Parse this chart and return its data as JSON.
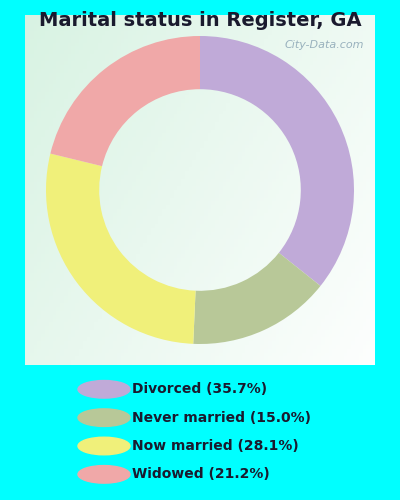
{
  "title": "Marital status in Register, GA",
  "title_fontsize": 14,
  "outer_bg_color": "#00ffff",
  "chart_bg_top_left": "#c8e8d8",
  "chart_bg_bottom_right": "#e8f4ee",
  "wedge_colors": [
    "#c0aad8",
    "#b8c898",
    "#f0f07a",
    "#f0a8a8"
  ],
  "values": [
    35.7,
    15.0,
    28.1,
    21.2
  ],
  "labels": [
    "Divorced (35.7%)",
    "Never married (15.0%)",
    "Now married (28.1%)",
    "Widowed (21.2%)"
  ],
  "legend_colors": [
    "#c0aad8",
    "#b8c898",
    "#f0f07a",
    "#f0a8a8"
  ],
  "watermark": "City-Data.com",
  "watermark_fontsize": 8
}
